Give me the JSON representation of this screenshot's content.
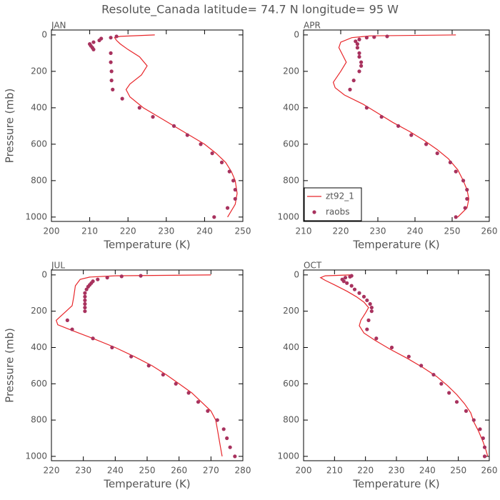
{
  "title": "Resolute_Canada  latitude= 74.7 N longitude= 95 W",
  "chart_data": [
    {
      "type": "line",
      "title": "JAN",
      "xlabel": "Temperature (K)",
      "ylabel": "Pressure (mb)",
      "xlim": [
        200,
        250
      ],
      "xticks": [
        200,
        210,
        220,
        230,
        240,
        250
      ],
      "ylim": [
        1024,
        -27
      ],
      "yticks": [
        0,
        200,
        400,
        600,
        800,
        1000
      ],
      "series": [
        {
          "name": "zt92_1",
          "type": "line",
          "color": "#e8262a",
          "x": [
            227,
            218,
            216.5,
            217,
            218,
            220,
            223,
            225,
            223.5,
            220.5,
            219.5,
            220.5,
            224,
            228,
            232,
            236,
            240,
            243,
            245.5,
            247,
            248,
            248.5,
            248,
            246
          ],
          "values": [
            0,
            8,
            15,
            30,
            50,
            80,
            120,
            170,
            220,
            270,
            300,
            340,
            400,
            450,
            500,
            550,
            600,
            650,
            700,
            750,
            800,
            870,
            930,
            1000
          ]
        },
        {
          "name": "raobs",
          "type": "scatter",
          "color": "#a8325e",
          "x": [
            217,
            215.5,
            213,
            212.5,
            211,
            210,
            210.3,
            210.7,
            211,
            215.5,
            215.5,
            215.7,
            215.7,
            216,
            218.5,
            223,
            226.5,
            232,
            235.5,
            239,
            242,
            244.5,
            246.5,
            247.5,
            248,
            248,
            246,
            242.5
          ],
          "values": [
            8,
            15,
            20,
            30,
            40,
            50,
            60,
            70,
            80,
            100,
            150,
            200,
            250,
            300,
            350,
            400,
            450,
            500,
            550,
            600,
            650,
            700,
            750,
            800,
            850,
            900,
            950,
            1000
          ]
        }
      ]
    },
    {
      "type": "line",
      "title": "APR",
      "xlabel": "Temperature (K)",
      "xlim": [
        210,
        260
      ],
      "xticks": [
        210,
        220,
        230,
        240,
        250,
        260
      ],
      "ylim": [
        1024,
        -27
      ],
      "yticks": [
        0,
        200,
        400,
        600,
        800,
        1000
      ],
      "legend": "lower left",
      "series": [
        {
          "name": "zt92_1",
          "type": "line",
          "color": "#e8262a",
          "x": [
            251,
            228,
            223,
            220,
            219.5,
            220.5,
            221.5,
            220,
            218,
            218.5,
            221,
            226,
            230,
            234,
            238.5,
            242.5,
            246,
            249,
            251.5,
            253,
            254,
            254.5,
            254,
            251.5
          ],
          "values": [
            0,
            5,
            15,
            40,
            70,
            110,
            150,
            200,
            260,
            290,
            330,
            380,
            430,
            480,
            530,
            580,
            630,
            680,
            740,
            800,
            850,
            900,
            950,
            1000
          ]
        },
        {
          "name": "raobs",
          "type": "scatter",
          "color": "#a8325e",
          "x": [
            232.5,
            229,
            227,
            225,
            224,
            224.5,
            224.5,
            225,
            225,
            225.5,
            225.5,
            225,
            223.5,
            222.5,
            227,
            231,
            235.5,
            239,
            243,
            246,
            249.5,
            251,
            253,
            254,
            254,
            253.5,
            251
          ],
          "values": [
            8,
            12,
            15,
            25,
            35,
            50,
            70,
            100,
            120,
            150,
            170,
            200,
            250,
            300,
            400,
            450,
            500,
            550,
            600,
            650,
            700,
            750,
            800,
            850,
            900,
            950,
            1000
          ]
        }
      ]
    },
    {
      "type": "line",
      "title": "JUL",
      "xlabel": "Temperature (K)",
      "ylabel": "Pressure (mb)",
      "xlim": [
        220,
        280
      ],
      "xticks": [
        220,
        230,
        240,
        250,
        260,
        270,
        280
      ],
      "ylim": [
        1024,
        -27
      ],
      "yticks": [
        0,
        200,
        400,
        600,
        800,
        1000
      ],
      "series": [
        {
          "name": "zt92_1",
          "type": "line",
          "color": "#e8262a",
          "x": [
            270,
            240,
            232,
            229,
            227.5,
            227,
            226.5,
            224,
            221.5,
            222,
            227,
            233,
            240,
            246,
            251.5,
            256,
            260,
            264,
            267,
            270,
            271.5,
            272,
            272.5,
            273,
            273.5
          ],
          "values": [
            0,
            5,
            12,
            25,
            60,
            120,
            170,
            210,
            250,
            275,
            310,
            350,
            400,
            450,
            500,
            550,
            600,
            650,
            700,
            750,
            800,
            850,
            900,
            950,
            1000
          ]
        },
        {
          "name": "raobs",
          "type": "scatter",
          "color": "#a8325e",
          "x": [
            248,
            242,
            237.5,
            234.5,
            233,
            232.5,
            232,
            231.5,
            231,
            230.5,
            230.5,
            230.5,
            230.5,
            230.5,
            230.5,
            225,
            226.5,
            233,
            239,
            245,
            250.5,
            255,
            259,
            263,
            266,
            269,
            272,
            274,
            275,
            276,
            277.5
          ],
          "values": [
            5,
            8,
            15,
            25,
            35,
            45,
            55,
            65,
            80,
            100,
            120,
            140,
            160,
            180,
            200,
            250,
            300,
            350,
            400,
            450,
            500,
            550,
            600,
            650,
            700,
            750,
            800,
            850,
            900,
            950,
            1000
          ]
        }
      ]
    },
    {
      "type": "line",
      "title": "OCT",
      "xlabel": "Temperature (K)",
      "xlim": [
        200,
        260
      ],
      "xticks": [
        200,
        210,
        220,
        230,
        240,
        250,
        260
      ],
      "ylim": [
        1024,
        -27
      ],
      "yticks": [
        0,
        200,
        400,
        600,
        800,
        1000
      ],
      "series": [
        {
          "name": "zt92_1",
          "type": "line",
          "color": "#e8262a",
          "x": [
            215,
            207,
            205.5,
            207,
            210,
            214,
            217,
            219.5,
            221,
            220,
            218.5,
            218,
            219.5,
            223,
            228,
            233.5,
            238.5,
            243,
            246.5,
            249.5,
            252,
            254,
            255,
            256.5,
            258,
            259,
            259.5
          ],
          "values": [
            0,
            5,
            15,
            30,
            55,
            90,
            120,
            150,
            180,
            210,
            250,
            280,
            320,
            360,
            410,
            460,
            510,
            560,
            610,
            660,
            710,
            760,
            810,
            860,
            920,
            970,
            1000
          ]
        },
        {
          "name": "raobs",
          "type": "scatter",
          "color": "#a8325e",
          "x": [
            215.5,
            215,
            213.5,
            212.5,
            213,
            214,
            215.5,
            216.5,
            218,
            219.5,
            220.5,
            221.5,
            222,
            222,
            221,
            220.5,
            223.5,
            228.5,
            234,
            238,
            242,
            244.5,
            247,
            249.5,
            252.5,
            255,
            257,
            258,
            258.5,
            258.5
          ],
          "values": [
            5,
            10,
            15,
            25,
            35,
            45,
            60,
            80,
            100,
            120,
            140,
            160,
            180,
            200,
            250,
            300,
            350,
            400,
            450,
            500,
            550,
            600,
            650,
            700,
            750,
            800,
            850,
            900,
            950,
            1000
          ]
        }
      ]
    }
  ]
}
